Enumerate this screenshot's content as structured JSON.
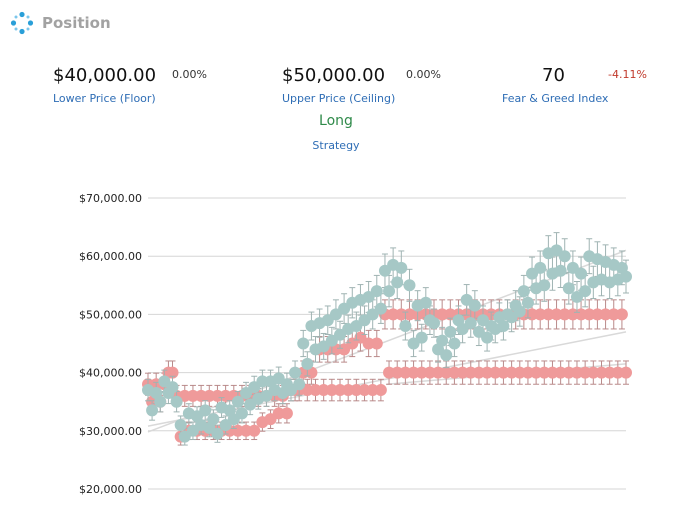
{
  "app": {
    "title": "Position",
    "logo_icon": "dots-ring-icon"
  },
  "stats": {
    "floor": {
      "value": "$40,000.00",
      "change": "0.00%",
      "label": "Lower Price (Floor)"
    },
    "ceiling": {
      "value": "$50,000.00",
      "change": "0.00%",
      "label": "Upper Price (Ceiling)"
    },
    "fear_greed": {
      "value": "70",
      "change": "-4.11%",
      "label": "Fear & Greed Index"
    }
  },
  "strategy": {
    "value": "Long",
    "label": "Strategy"
  },
  "colors": {
    "price": "#a6c8c6",
    "floor_ceiling": "#ef9a9a",
    "error_bar_price": "#9fb3b2",
    "error_bar_band": "#b98a8a",
    "grid": "#d6d6d6",
    "trend": "#d9d9d9",
    "positive": "#2f8a4a",
    "negative": "#c0392b",
    "link": "#2e6db5"
  },
  "chart_data": {
    "type": "scatter",
    "ylim": [
      20000,
      70000
    ],
    "y_ticks": [
      "$70,000.00",
      "$60,000.00",
      "$50,000.00",
      "$40,000.00",
      "$30,000.00",
      "$20,000.00"
    ],
    "y_tick_values": [
      70000,
      60000,
      50000,
      40000,
      30000,
      20000
    ],
    "grid": true,
    "error_bar_pct": 0.05,
    "series": [
      {
        "values": [
          37000,
          33500,
          36500,
          35000,
          38500,
          36500,
          37500,
          35000,
          31000,
          29000,
          33000,
          30000,
          32500,
          31000,
          33500,
          30500,
          32000,
          29500,
          34000,
          31000,
          33500,
          32000,
          35000,
          33000,
          36500,
          34500,
          37500,
          35500,
          38500,
          36000,
          38500,
          37000,
          39000,
          36500,
          38000,
          37000,
          40000,
          38000,
          45000,
          41500,
          48000,
          44000,
          48500,
          44500,
          49000,
          45500,
          50000,
          46500,
          51000,
          47500,
          52000,
          48000,
          52500,
          49000,
          53000,
          50000,
          54000,
          51000,
          57500,
          54000,
          58500,
          55500,
          58000,
          48000,
          55000,
          45000,
          51500,
          46000,
          52000,
          49000,
          48500,
          44000,
          45500,
          43000,
          47000,
          45000,
          49000,
          47500,
          52500,
          48500,
          51500,
          47000,
          49000,
          46000,
          48000,
          47500,
          49500,
          48000,
          50000,
          49500,
          51500,
          50500,
          54000,
          52000,
          57000,
          54500,
          58000,
          55000,
          60500,
          57000,
          61000,
          57500,
          60000,
          54500,
          58000,
          53000,
          57000,
          54000,
          60000,
          55500,
          59500,
          56000,
          59000,
          55500,
          58500,
          56000,
          58000,
          56500
        ],
        "error_bar_pct": 0.05
      },
      {
        "values": [
          38000,
          35000,
          38000,
          35000,
          38000,
          40000,
          40000,
          36000,
          29000,
          36000,
          30000,
          36000,
          30000,
          36000,
          30000,
          36000,
          30000,
          36000,
          30000,
          36000,
          30000,
          36000,
          30000,
          36000,
          30000,
          36000,
          30000,
          36000,
          31500,
          36000,
          32000,
          36000,
          33000,
          36000,
          33000,
          37000,
          37000,
          37000,
          40000,
          37000,
          40000,
          37000,
          44000,
          37000,
          44000,
          37000,
          44000,
          37000,
          44000,
          37000,
          45000,
          37000,
          46000,
          37000,
          45000,
          37000,
          45000,
          37000,
          50000,
          40000,
          50000,
          40000,
          50000,
          40000,
          50000,
          40000,
          50000,
          40000,
          50000,
          40000,
          50000,
          40000,
          50000,
          40000,
          50000,
          40000,
          50000,
          40000,
          50000,
          40000,
          50000,
          40000,
          50000,
          40000,
          50000,
          40000,
          50000,
          40000,
          50000,
          40000,
          50000,
          40000,
          50000,
          40000,
          50000,
          40000,
          50000,
          40000,
          50000,
          40000,
          50000,
          40000,
          50000,
          40000,
          50000,
          40000,
          50000,
          40000,
          50000,
          40000,
          50000,
          40000,
          50000,
          40000,
          50000,
          40000,
          50000,
          40000
        ],
        "error_bar_pct": 0.05
      }
    ],
    "trend_lines": [
      {
        "from": [
          0,
          29800
        ],
        "to": [
          1,
          61000
        ]
      },
      {
        "from": [
          0,
          30800
        ],
        "to": [
          1,
          47000
        ]
      },
      {
        "from": [
          0.5,
          38000
        ],
        "to": [
          1,
          41500
        ]
      }
    ]
  }
}
